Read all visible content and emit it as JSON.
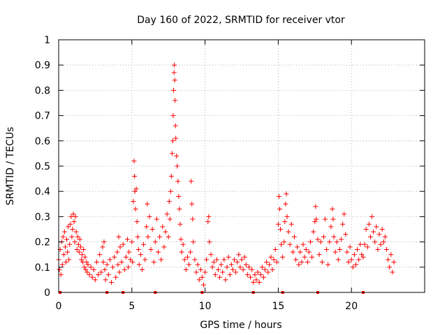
{
  "chart_data": {
    "type": "scatter",
    "title": "Day 160 of 2022, SRMTID for receiver vtor",
    "xlabel": "GPS time / hours",
    "ylabel": "SRMTID / TECUs",
    "xlim": [
      0,
      25
    ],
    "ylim": [
      0,
      1
    ],
    "x_ticks": [
      0,
      5,
      10,
      15,
      20
    ],
    "x_tick_labels": [
      "0",
      "5",
      "10",
      "15",
      "20"
    ],
    "y_ticks": [
      0,
      0.1,
      0.2,
      0.3,
      0.4,
      0.5,
      0.6,
      0.7,
      0.8,
      0.9,
      1
    ],
    "y_tick_labels": [
      "0",
      "0.1",
      "0.2",
      "0.3",
      "0.4",
      "0.5",
      "0.6",
      "0.7",
      "0.8",
      "0.9",
      "1"
    ],
    "grid": true,
    "marker": "+",
    "color": "#ff0000",
    "series": [
      {
        "name": "SRMTID",
        "points": [
          [
            0.0,
            0.13
          ],
          [
            0.05,
            0.09
          ],
          [
            0.1,
            0.17
          ],
          [
            0.15,
            0.07
          ],
          [
            0.2,
            0.2
          ],
          [
            0.25,
            0.11
          ],
          [
            0.3,
            0.22
          ],
          [
            0.35,
            0.15
          ],
          [
            0.4,
            0.24
          ],
          [
            0.45,
            0.18
          ],
          [
            0.5,
            0.12
          ],
          [
            0.55,
            0.21
          ],
          [
            0.6,
            0.16
          ],
          [
            0.65,
            0.26
          ],
          [
            0.7,
            0.13
          ],
          [
            0.75,
            0.19
          ],
          [
            0.8,
            0.27
          ],
          [
            0.85,
            0.3
          ],
          [
            0.9,
            0.22
          ],
          [
            0.95,
            0.25
          ],
          [
            1.0,
            0.31
          ],
          [
            1.05,
            0.28
          ],
          [
            1.1,
            0.2
          ],
          [
            1.15,
            0.3
          ],
          [
            1.2,
            0.24
          ],
          [
            1.25,
            0.17
          ],
          [
            1.3,
            0.22
          ],
          [
            1.35,
            0.19
          ],
          [
            1.4,
            0.16
          ],
          [
            1.45,
            0.21
          ],
          [
            1.5,
            0.18
          ],
          [
            1.55,
            0.13
          ],
          [
            1.6,
            0.15
          ],
          [
            1.65,
            0.12
          ],
          [
            1.7,
            0.17
          ],
          [
            1.75,
            0.1
          ],
          [
            1.8,
            0.14
          ],
          [
            1.85,
            0.09
          ],
          [
            1.9,
            0.12
          ],
          [
            1.95,
            0.08
          ],
          [
            2.0,
            0.11
          ],
          [
            2.1,
            0.07
          ],
          [
            2.2,
            0.1
          ],
          [
            2.3,
            0.06
          ],
          [
            2.4,
            0.09
          ],
          [
            2.5,
            0.05
          ],
          [
            2.6,
            0.12
          ],
          [
            2.7,
            0.07
          ],
          [
            2.8,
            0.15
          ],
          [
            2.9,
            0.08
          ],
          [
            3.0,
            0.18
          ],
          [
            3.05,
            0.12
          ],
          [
            3.1,
            0.2
          ],
          [
            3.15,
            0.09
          ],
          [
            3.2,
            0.05
          ],
          [
            3.3,
            0.11
          ],
          [
            3.4,
            0.07
          ],
          [
            3.5,
            0.13
          ],
          [
            3.6,
            0.04
          ],
          [
            3.7,
            0.1
          ],
          [
            3.8,
            0.14
          ],
          [
            3.9,
            0.06
          ],
          [
            4.0,
            0.16
          ],
          [
            4.05,
            0.11
          ],
          [
            4.1,
            0.22
          ],
          [
            4.15,
            0.08
          ],
          [
            4.2,
            0.18
          ],
          [
            4.3,
            0.12
          ],
          [
            4.4,
            0.19
          ],
          [
            4.5,
            0.09
          ],
          [
            4.6,
            0.14
          ],
          [
            4.7,
            0.21
          ],
          [
            4.75,
            0.1
          ],
          [
            4.8,
            0.16
          ],
          [
            4.9,
            0.13
          ],
          [
            5.0,
            0.2
          ],
          [
            5.05,
            0.12
          ],
          [
            5.1,
            0.36
          ],
          [
            5.15,
            0.52
          ],
          [
            5.18,
            0.46
          ],
          [
            5.2,
            0.4
          ],
          [
            5.25,
            0.33
          ],
          [
            5.3,
            0.41
          ],
          [
            5.35,
            0.28
          ],
          [
            5.4,
            0.22
          ],
          [
            5.45,
            0.17
          ],
          [
            5.5,
            0.11
          ],
          [
            5.6,
            0.15
          ],
          [
            5.7,
            0.09
          ],
          [
            5.8,
            0.19
          ],
          [
            5.9,
            0.13
          ],
          [
            6.0,
            0.26
          ],
          [
            6.05,
            0.35
          ],
          [
            6.1,
            0.22
          ],
          [
            6.2,
            0.3
          ],
          [
            6.3,
            0.17
          ],
          [
            6.4,
            0.25
          ],
          [
            6.5,
            0.12
          ],
          [
            6.6,
            0.2
          ],
          [
            6.7,
            0.29
          ],
          [
            6.8,
            0.16
          ],
          [
            6.9,
            0.22
          ],
          [
            7.0,
            0.13
          ],
          [
            7.1,
            0.26
          ],
          [
            7.2,
            0.18
          ],
          [
            7.3,
            0.24
          ],
          [
            7.4,
            0.31
          ],
          [
            7.5,
            0.22
          ],
          [
            7.55,
            0.36
          ],
          [
            7.6,
            0.29
          ],
          [
            7.65,
            0.4
          ],
          [
            7.7,
            0.46
          ],
          [
            7.75,
            0.55
          ],
          [
            7.8,
            0.6
          ],
          [
            7.82,
            0.7
          ],
          [
            7.85,
            0.8
          ],
          [
            7.88,
            0.87
          ],
          [
            7.9,
            0.9
          ],
          [
            7.93,
            0.84
          ],
          [
            7.95,
            0.76
          ],
          [
            7.98,
            0.66
          ],
          [
            8.0,
            0.61
          ],
          [
            8.05,
            0.54
          ],
          [
            8.1,
            0.5
          ],
          [
            8.15,
            0.44
          ],
          [
            8.2,
            0.38
          ],
          [
            8.25,
            0.33
          ],
          [
            8.3,
            0.27
          ],
          [
            8.35,
            0.21
          ],
          [
            8.4,
            0.16
          ],
          [
            8.5,
            0.19
          ],
          [
            8.6,
            0.13
          ],
          [
            8.7,
            0.09
          ],
          [
            8.8,
            0.14
          ],
          [
            8.9,
            0.11
          ],
          [
            9.0,
            0.16
          ],
          [
            9.05,
            0.44
          ],
          [
            9.1,
            0.35
          ],
          [
            9.15,
            0.29
          ],
          [
            9.2,
            0.2
          ],
          [
            9.3,
            0.13
          ],
          [
            9.4,
            0.08
          ],
          [
            9.5,
            0.11
          ],
          [
            9.6,
            0.05
          ],
          [
            9.7,
            0.09
          ],
          [
            9.8,
            0.06
          ],
          [
            9.9,
            0.03
          ],
          [
            10.0,
            0.08
          ],
          [
            10.1,
            0.13
          ],
          [
            10.2,
            0.28
          ],
          [
            10.25,
            0.3
          ],
          [
            10.3,
            0.2
          ],
          [
            10.4,
            0.15
          ],
          [
            10.5,
            0.1
          ],
          [
            10.6,
            0.12
          ],
          [
            10.7,
            0.07
          ],
          [
            10.8,
            0.13
          ],
          [
            10.9,
            0.09
          ],
          [
            11.0,
            0.06
          ],
          [
            11.1,
            0.11
          ],
          [
            11.2,
            0.08
          ],
          [
            11.3,
            0.13
          ],
          [
            11.4,
            0.05
          ],
          [
            11.5,
            0.1
          ],
          [
            11.6,
            0.14
          ],
          [
            11.7,
            0.07
          ],
          [
            11.8,
            0.11
          ],
          [
            11.9,
            0.09
          ],
          [
            12.0,
            0.13
          ],
          [
            12.1,
            0.08
          ],
          [
            12.2,
            0.12
          ],
          [
            12.3,
            0.15
          ],
          [
            12.4,
            0.1
          ],
          [
            12.5,
            0.13
          ],
          [
            12.6,
            0.09
          ],
          [
            12.7,
            0.14
          ],
          [
            12.8,
            0.11
          ],
          [
            12.9,
            0.07
          ],
          [
            13.0,
            0.1
          ],
          [
            13.1,
            0.06
          ],
          [
            13.2,
            0.09
          ],
          [
            13.3,
            0.04
          ],
          [
            13.4,
            0.07
          ],
          [
            13.5,
            0.05
          ],
          [
            13.6,
            0.08
          ],
          [
            13.7,
            0.04
          ],
          [
            13.8,
            0.07
          ],
          [
            13.9,
            0.1
          ],
          [
            14.0,
            0.06
          ],
          [
            14.1,
            0.09
          ],
          [
            14.2,
            0.12
          ],
          [
            14.3,
            0.08
          ],
          [
            14.4,
            0.11
          ],
          [
            14.5,
            0.14
          ],
          [
            14.6,
            0.09
          ],
          [
            14.7,
            0.13
          ],
          [
            14.8,
            0.17
          ],
          [
            14.9,
            0.12
          ],
          [
            15.0,
            0.27
          ],
          [
            15.05,
            0.38
          ],
          [
            15.1,
            0.33
          ],
          [
            15.15,
            0.25
          ],
          [
            15.2,
            0.19
          ],
          [
            15.3,
            0.14
          ],
          [
            15.4,
            0.2
          ],
          [
            15.45,
            0.28
          ],
          [
            15.5,
            0.35
          ],
          [
            15.55,
            0.39
          ],
          [
            15.6,
            0.3
          ],
          [
            15.7,
            0.24
          ],
          [
            15.8,
            0.19
          ],
          [
            15.9,
            0.27
          ],
          [
            16.0,
            0.16
          ],
          [
            16.1,
            0.22
          ],
          [
            16.2,
            0.13
          ],
          [
            16.3,
            0.18
          ],
          [
            16.4,
            0.11
          ],
          [
            16.5,
            0.16
          ],
          [
            16.6,
            0.12
          ],
          [
            16.7,
            0.19
          ],
          [
            16.8,
            0.14
          ],
          [
            16.9,
            0.17
          ],
          [
            17.0,
            0.12
          ],
          [
            17.1,
            0.16
          ],
          [
            17.2,
            0.2
          ],
          [
            17.3,
            0.14
          ],
          [
            17.4,
            0.24
          ],
          [
            17.5,
            0.28
          ],
          [
            17.55,
            0.34
          ],
          [
            17.6,
            0.29
          ],
          [
            17.7,
            0.21
          ],
          [
            17.8,
            0.15
          ],
          [
            17.9,
            0.2
          ],
          [
            18.0,
            0.12
          ],
          [
            18.1,
            0.22
          ],
          [
            18.2,
            0.29
          ],
          [
            18.3,
            0.17
          ],
          [
            18.4,
            0.11
          ],
          [
            18.5,
            0.2
          ],
          [
            18.6,
            0.26
          ],
          [
            18.7,
            0.33
          ],
          [
            18.75,
            0.29
          ],
          [
            18.8,
            0.22
          ],
          [
            18.9,
            0.16
          ],
          [
            19.0,
            0.2
          ],
          [
            19.1,
            0.13
          ],
          [
            19.2,
            0.17
          ],
          [
            19.3,
            0.21
          ],
          [
            19.4,
            0.27
          ],
          [
            19.5,
            0.31
          ],
          [
            19.6,
            0.23
          ],
          [
            19.7,
            0.16
          ],
          [
            19.8,
            0.12
          ],
          [
            19.9,
            0.18
          ],
          [
            20.0,
            0.13
          ],
          [
            20.1,
            0.1
          ],
          [
            20.2,
            0.15
          ],
          [
            20.3,
            0.11
          ],
          [
            20.4,
            0.17
          ],
          [
            20.5,
            0.13
          ],
          [
            20.6,
            0.19
          ],
          [
            20.7,
            0.15
          ],
          [
            20.8,
            0.14
          ],
          [
            20.9,
            0.19
          ],
          [
            21.0,
            0.25
          ],
          [
            21.1,
            0.18
          ],
          [
            21.2,
            0.27
          ],
          [
            21.3,
            0.22
          ],
          [
            21.4,
            0.3
          ],
          [
            21.5,
            0.24
          ],
          [
            21.6,
            0.2
          ],
          [
            21.7,
            0.26
          ],
          [
            21.8,
            0.17
          ],
          [
            21.9,
            0.23
          ],
          [
            22.0,
            0.19
          ],
          [
            22.1,
            0.25
          ],
          [
            22.2,
            0.2
          ],
          [
            22.3,
            0.22
          ],
          [
            22.4,
            0.17
          ],
          [
            22.5,
            0.13
          ],
          [
            22.6,
            0.1
          ],
          [
            22.7,
            0.15
          ],
          [
            22.8,
            0.08
          ],
          [
            22.9,
            0.12
          ]
        ]
      }
    ],
    "axis_markers": [
      0.1,
      3.3,
      4.4,
      6.6,
      9.8,
      13.3,
      15.3,
      17.7,
      20.8
    ]
  }
}
